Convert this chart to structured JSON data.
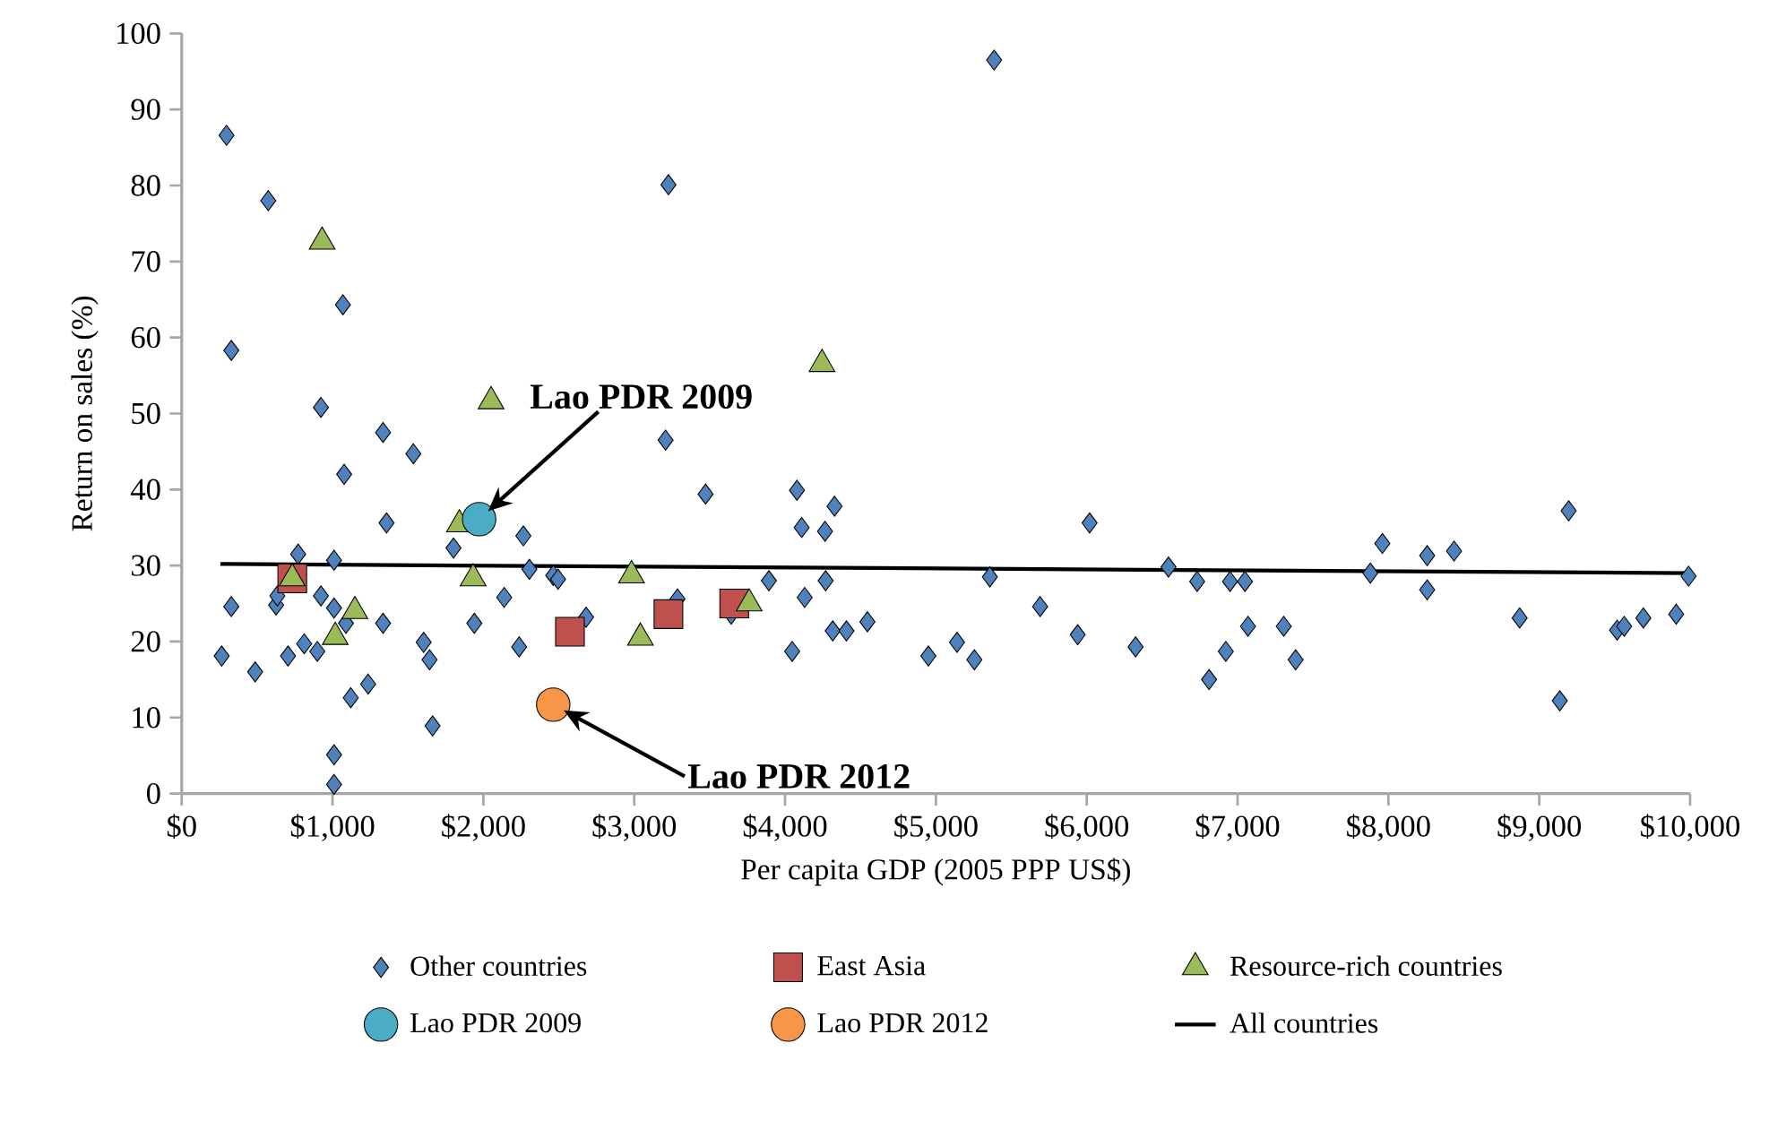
{
  "chart_data": {
    "type": "scatter",
    "xlabel": "Per capita GDP (2005 PPP US$)",
    "ylabel": "Return on sales (%)",
    "xlim": [
      0,
      10000
    ],
    "ylim": [
      0,
      100
    ],
    "xticks": [
      {
        "value": 0,
        "label": "$0"
      },
      {
        "value": 1000,
        "label": "$1,000"
      },
      {
        "value": 2000,
        "label": "$2,000"
      },
      {
        "value": 3000,
        "label": "$3,000"
      },
      {
        "value": 4000,
        "label": "$4,000"
      },
      {
        "value": 5000,
        "label": "$5,000"
      },
      {
        "value": 6000,
        "label": "$6,000"
      },
      {
        "value": 7000,
        "label": "$7,000"
      },
      {
        "value": 8000,
        "label": "$8,000"
      },
      {
        "value": 9000,
        "label": "$9,000"
      },
      {
        "value": 10000,
        "label": "$10,000"
      }
    ],
    "yticks": [
      0,
      10,
      20,
      30,
      40,
      50,
      60,
      70,
      80,
      90,
      100
    ],
    "legend": "bottom",
    "series": [
      {
        "name": "Other countries",
        "color": "#4f81bd",
        "marker": "diamond",
        "x": [
          297,
          574,
          329,
          1069,
          923,
          1335,
          1536,
          1077,
          3208,
          3227,
          3473,
          1358,
          1802,
          2265,
          772,
          1010,
          329,
          626,
          634,
          923,
          1010,
          1089,
          265,
          487,
          705,
          812,
          899,
          1335,
          1604,
          1643,
          1121,
          1236,
          1663,
          1010,
          1010,
          1940,
          2138,
          2237,
          2305,
          2463,
          2495,
          2681,
          3287,
          3643,
          5386,
          4079,
          4110,
          4328,
          4265,
          3893,
          4130,
          4269,
          4047,
          4316,
          4407,
          4546,
          4950,
          5140,
          5255,
          5358,
          5691,
          5940,
          6019,
          6324,
          6542,
          6732,
          6811,
          6922,
          6950,
          7049,
          7069,
          7306,
          7385,
          7880,
          7960,
          8257,
          8435,
          8257,
          8870,
          9136,
          9195,
          9516,
          9563,
          9690,
          9908,
          9990
        ],
        "values": [
          86.6,
          78,
          58.3,
          64.3,
          50.8,
          47.5,
          44.7,
          42,
          46.5,
          80.1,
          39.4,
          35.6,
          32.3,
          33.9,
          31.5,
          30.7,
          24.6,
          24.8,
          26,
          26,
          24.4,
          22.4,
          18.1,
          16,
          18.1,
          19.7,
          18.7,
          22.4,
          19.9,
          17.6,
          12.6,
          14.4,
          8.9,
          5.1,
          1.2,
          22.4,
          25.8,
          19.3,
          29.5,
          28.7,
          28.2,
          23.2,
          25.6,
          23.6,
          96.5,
          39.9,
          35,
          37.8,
          34.5,
          28,
          25.8,
          28,
          18.7,
          21.4,
          21.4,
          22.6,
          18.1,
          19.9,
          17.6,
          28.5,
          24.6,
          20.9,
          35.6,
          19.3,
          29.8,
          27.9,
          15,
          18.7,
          27.9,
          27.9,
          22,
          22,
          17.6,
          29,
          32.9,
          31.3,
          31.9,
          26.8,
          23.1,
          12.2,
          37.2,
          21.5,
          22,
          23.1,
          23.6,
          28.6
        ]
      },
      {
        "name": "East Asia",
        "color": "#c0504d",
        "marker": "square",
        "x": [
          733,
          2574,
          3227,
          3663
        ],
        "values": [
          28.3,
          21.3,
          23.6,
          25
        ]
      },
      {
        "name": "Resource-rich countries",
        "color": "#9bbb59",
        "marker": "triangle",
        "x": [
          931,
          2051,
          733,
          1932,
          1841,
          1148,
          1018,
          2982,
          3041,
          3762,
          4245
        ],
        "values": [
          72.6,
          51.6,
          28.3,
          28.3,
          35.4,
          24,
          20.6,
          28.7,
          20.5,
          25,
          56.5
        ]
      },
      {
        "name": "Lao PDR 2009",
        "color": "#4bacc6",
        "marker": "circle",
        "x": [
          1972
        ],
        "values": [
          36.1
        ]
      },
      {
        "name": "Lao PDR 2012",
        "color": "#f79646",
        "marker": "circle",
        "x": [
          2463
        ],
        "values": [
          11.7
        ]
      },
      {
        "name": "All countries",
        "color": "#000000",
        "type": "line",
        "marker": "none",
        "x": [
          257,
          9990
        ],
        "values": [
          30.2,
          29
        ]
      }
    ],
    "annotations": [
      "Lao PDR 2009",
      "Lao PDR 2012"
    ]
  }
}
